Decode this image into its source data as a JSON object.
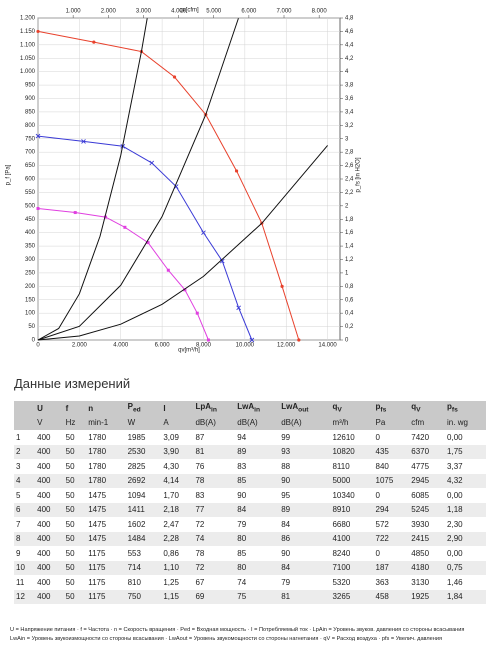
{
  "chart_data": {
    "type": "line",
    "xlabel": "qv[m³/h]",
    "x2label": "qv[cfm]",
    "ylabel": "p_f [Pa]",
    "y2label": "p_fs [in H2O]",
    "xlim": [
      0,
      14600
    ],
    "xticks": [
      0,
      {
        "value": 2000,
        "label": "2.000"
      },
      {
        "value": 4000,
        "label": "4.000"
      },
      {
        "value": 6000,
        "label": "6.000"
      },
      {
        "value": 8000,
        "label": "8.000"
      },
      {
        "value": 10000,
        "label": "10.000"
      },
      {
        "value": 12000,
        "label": "12.000"
      },
      {
        "value": 14000,
        "label": "14.000"
      }
    ],
    "x2lim": [
      0,
      8593
    ],
    "x2ticks": [
      {
        "value": 1000,
        "label": "1.000"
      },
      {
        "value": 2000,
        "label": "2.000"
      },
      {
        "value": 3000,
        "label": "3.000"
      },
      {
        "value": 4000,
        "label": "4.000"
      },
      {
        "value": 5000,
        "label": "5.000"
      },
      {
        "value": 6000,
        "label": "6.000"
      },
      {
        "value": 7000,
        "label": "7.000"
      },
      {
        "value": 8000,
        "label": "8.000"
      }
    ],
    "ylim": [
      0,
      1200
    ],
    "yticks": [
      0,
      50,
      100,
      150,
      200,
      250,
      300,
      350,
      400,
      450,
      500,
      550,
      600,
      650,
      700,
      750,
      800,
      850,
      900,
      950,
      {
        "value": 1000,
        "label": "1.000"
      },
      {
        "value": 1050,
        "label": "1.050"
      },
      {
        "value": 1100,
        "label": "1.100"
      },
      {
        "value": 1150,
        "label": "1.150"
      },
      {
        "value": 1200,
        "label": "1.200"
      }
    ],
    "y2lim": [
      0,
      4.8
    ],
    "y2ticks": [
      0,
      {
        "value": 0.2,
        "label": "0,2"
      },
      {
        "value": 0.4,
        "label": "0,4"
      },
      {
        "value": 0.6,
        "label": "0,6"
      },
      {
        "value": 0.8,
        "label": "0,8"
      },
      1,
      {
        "value": 1.2,
        "label": "1,2"
      },
      {
        "value": 1.4,
        "label": "1,4"
      },
      {
        "value": 1.6,
        "label": "1,6"
      },
      {
        "value": 1.8,
        "label": "1,8"
      },
      2,
      {
        "value": 2.2,
        "label": "2,2"
      },
      {
        "value": 2.4,
        "label": "2,4"
      },
      {
        "value": 2.6,
        "label": "2,6"
      },
      {
        "value": 2.8,
        "label": "2,8"
      },
      3,
      {
        "value": 3.2,
        "label": "3,2"
      },
      {
        "value": 3.4,
        "label": "3,4"
      },
      {
        "value": 3.6,
        "label": "3,6"
      },
      {
        "value": 3.8,
        "label": "3,8"
      },
      4,
      {
        "value": 4.2,
        "label": "4,2"
      },
      {
        "value": 4.4,
        "label": "4,4"
      },
      {
        "value": 4.6,
        "label": "4,6"
      },
      {
        "value": 4.8,
        "label": "4,8"
      }
    ],
    "grid": true,
    "series": [
      {
        "color": "#e8412c",
        "marker": "circle",
        "x": [
          0,
          2700,
          5000,
          6600,
          8110,
          9600,
          10820,
          11800,
          12610
        ],
        "values": [
          1150,
          1110,
          1075,
          980,
          840,
          630,
          435,
          200,
          0
        ]
      },
      {
        "color": "#3a3ad6",
        "marker": "cross",
        "x": [
          0,
          2200,
          4100,
          5500,
          6680,
          8000,
          8910,
          9700,
          10340
        ],
        "values": [
          760,
          740,
          722,
          660,
          572,
          400,
          294,
          120,
          0
        ]
      },
      {
        "color": "#e040e0",
        "marker": "square",
        "x": [
          0,
          1800,
          3265,
          4200,
          5320,
          6300,
          7100,
          7700,
          8240
        ],
        "values": [
          490,
          475,
          458,
          420,
          363,
          260,
          187,
          100,
          0
        ]
      },
      {
        "color": "#111111",
        "marker": "none",
        "x": [
          0,
          1000,
          2000,
          3000,
          4000,
          5000,
          5280
        ],
        "values": [
          0,
          43,
          172,
          387,
          688,
          1075,
          1199
        ]
      },
      {
        "color": "#111111",
        "marker": "none",
        "x": [
          0,
          2000,
          4000,
          6000,
          8110,
          9690
        ],
        "values": [
          0,
          51,
          204,
          460,
          840,
          1199
        ]
      },
      {
        "color": "#111111",
        "marker": "none",
        "x": [
          0,
          2000,
          4000,
          6000,
          8000,
          10820,
          14000
        ],
        "values": [
          0,
          15,
          59,
          133,
          237,
          435,
          725
        ]
      }
    ]
  },
  "table": {
    "title": "Данные измерений",
    "header": [
      null,
      {
        "main": "U"
      },
      {
        "main": "f"
      },
      {
        "main": "n"
      },
      {
        "main": "P",
        "sub": "ed"
      },
      {
        "main": "I"
      },
      {
        "main": "LpA",
        "sub": "in"
      },
      {
        "main": "LwA",
        "sub": "in"
      },
      {
        "main": "LwA",
        "sub": "out"
      },
      {
        "main": "q",
        "sub": "V"
      },
      {
        "main": "p",
        "sub": "fs"
      },
      {
        "main": "q",
        "sub": "V"
      },
      {
        "main": "p",
        "sub": "fs"
      }
    ],
    "units": [
      null,
      "V",
      "Hz",
      "min-1",
      "W",
      "A",
      "dB(A)",
      "dB(A)",
      "dB(A)",
      "m³/h",
      "Pa",
      "cfm",
      "in. wg"
    ],
    "rows": [
      [
        "1",
        "400",
        "50",
        "1780",
        "1985",
        "3,09",
        "87",
        "94",
        "99",
        "12610",
        "0",
        "7420",
        "0,00"
      ],
      [
        "2",
        "400",
        "50",
        "1780",
        "2530",
        "3,90",
        "81",
        "89",
        "93",
        "10820",
        "435",
        "6370",
        "1,75"
      ],
      [
        "3",
        "400",
        "50",
        "1780",
        "2825",
        "4,30",
        "76",
        "83",
        "88",
        "8110",
        "840",
        "4775",
        "3,37"
      ],
      [
        "4",
        "400",
        "50",
        "1780",
        "2692",
        "4,14",
        "78",
        "85",
        "90",
        "5000",
        "1075",
        "2945",
        "4,32"
      ],
      [
        "5",
        "400",
        "50",
        "1475",
        "1094",
        "1,70",
        "83",
        "90",
        "95",
        "10340",
        "0",
        "6085",
        "0,00"
      ],
      [
        "6",
        "400",
        "50",
        "1475",
        "1411",
        "2,18",
        "77",
        "84",
        "89",
        "8910",
        "294",
        "5245",
        "1,18"
      ],
      [
        "7",
        "400",
        "50",
        "1475",
        "1602",
        "2,47",
        "72",
        "79",
        "84",
        "6680",
        "572",
        "3930",
        "2,30"
      ],
      [
        "8",
        "400",
        "50",
        "1475",
        "1484",
        "2,28",
        "74",
        "80",
        "86",
        "4100",
        "722",
        "2415",
        "2,90"
      ],
      [
        "9",
        "400",
        "50",
        "1175",
        "553",
        "0,86",
        "78",
        "85",
        "90",
        "8240",
        "0",
        "4850",
        "0,00"
      ],
      [
        "10",
        "400",
        "50",
        "1175",
        "714",
        "1,10",
        "72",
        "80",
        "84",
        "7100",
        "187",
        "4180",
        "0,75"
      ],
      [
        "11",
        "400",
        "50",
        "1175",
        "810",
        "1,25",
        "67",
        "74",
        "79",
        "5320",
        "363",
        "3130",
        "1,46"
      ],
      [
        "12",
        "400",
        "50",
        "1175",
        "750",
        "1,15",
        "69",
        "75",
        "81",
        "3265",
        "458",
        "1925",
        "1,84"
      ]
    ]
  },
  "footnotes": [
    "U = Напряжение питания · f = Частота · n = Скорость вращения · Ped = Входная мощность · I = Потребляемый ток · LpAin = Уровень звуков. давления со стороны всасывания",
    "LwAin = Уровень звукоизмощности со стороны всасывания · LwAout = Уровень звукомощности со стороны нагнетания · qV = Расход воздуха · pfs = Увелич. давления"
  ]
}
